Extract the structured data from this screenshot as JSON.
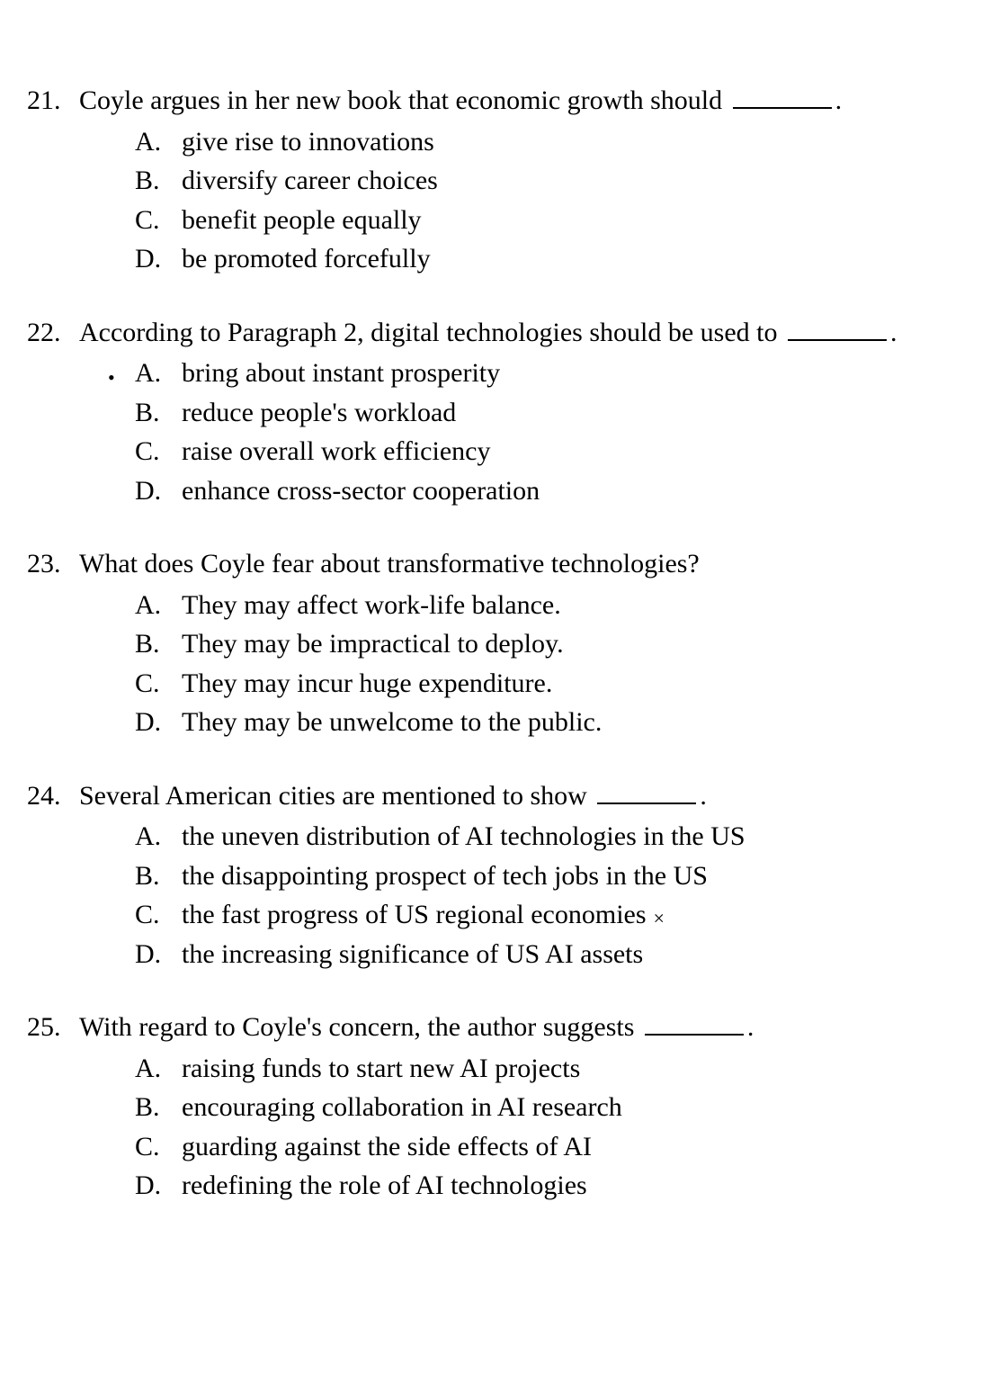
{
  "page": {
    "background_color": "#ffffff",
    "text_color": "#000000",
    "font_family": "Times New Roman",
    "font_size_pt": 22
  },
  "questions": [
    {
      "number": "21.",
      "stem_before": "Coyle argues in her new book that economic growth should",
      "stem_after": ".",
      "has_blank": true,
      "options": [
        {
          "letter": "A.",
          "text": "give rise to innovations",
          "dot": false,
          "x": false
        },
        {
          "letter": "B.",
          "text": "diversify career choices",
          "dot": false,
          "x": false
        },
        {
          "letter": "C.",
          "text": "benefit people equally",
          "dot": false,
          "x": false
        },
        {
          "letter": "D.",
          "text": "be promoted forcefully",
          "dot": false,
          "x": false
        }
      ]
    },
    {
      "number": "22.",
      "stem_before": "According to Paragraph 2, digital technologies should be used to",
      "stem_after": ".",
      "has_blank": true,
      "options": [
        {
          "letter": "A.",
          "text": "bring about instant prosperity",
          "dot": true,
          "x": false
        },
        {
          "letter": "B.",
          "text": "reduce people's workload",
          "dot": false,
          "x": false
        },
        {
          "letter": "C.",
          "text": "raise overall work efficiency",
          "dot": false,
          "x": false
        },
        {
          "letter": "D.",
          "text": "enhance cross-sector cooperation",
          "dot": false,
          "x": false
        }
      ]
    },
    {
      "number": "23.",
      "stem_before": "What does Coyle fear about transformative technologies?",
      "stem_after": "",
      "has_blank": false,
      "options": [
        {
          "letter": "A.",
          "text": "They may affect work-life balance.",
          "dot": false,
          "x": false
        },
        {
          "letter": "B.",
          "text": "They may be impractical to deploy.",
          "dot": false,
          "x": false
        },
        {
          "letter": "C.",
          "text": "They may incur huge expenditure.",
          "dot": false,
          "x": false
        },
        {
          "letter": "D.",
          "text": "They may be unwelcome to the public.",
          "dot": false,
          "x": false
        }
      ]
    },
    {
      "number": "24.",
      "stem_before": "Several American cities are mentioned to show",
      "stem_after": ".",
      "has_blank": true,
      "options": [
        {
          "letter": "A.",
          "text": "the uneven distribution of AI technologies in the US",
          "dot": false,
          "x": false
        },
        {
          "letter": "B.",
          "text": "the disappointing prospect of tech jobs in the US",
          "dot": false,
          "x": false
        },
        {
          "letter": "C.",
          "text": "the fast progress of US regional economies",
          "dot": false,
          "x": true
        },
        {
          "letter": "D.",
          "text": "the increasing significance of US AI assets",
          "dot": false,
          "x": false
        }
      ]
    },
    {
      "number": "25.",
      "stem_before": "With regard to Coyle's concern, the author suggests",
      "stem_after": ".",
      "has_blank": true,
      "options": [
        {
          "letter": "A.",
          "text": "raising funds to start new AI projects",
          "dot": false,
          "x": false
        },
        {
          "letter": "B.",
          "text": "encouraging collaboration in AI research",
          "dot": false,
          "x": false
        },
        {
          "letter": "C.",
          "text": "guarding against the side effects of AI",
          "dot": false,
          "x": false
        },
        {
          "letter": "D.",
          "text": "redefining the role of AI technologies",
          "dot": false,
          "x": false
        }
      ]
    }
  ],
  "marks": {
    "dot_glyph": "•",
    "x_glyph": "×"
  }
}
